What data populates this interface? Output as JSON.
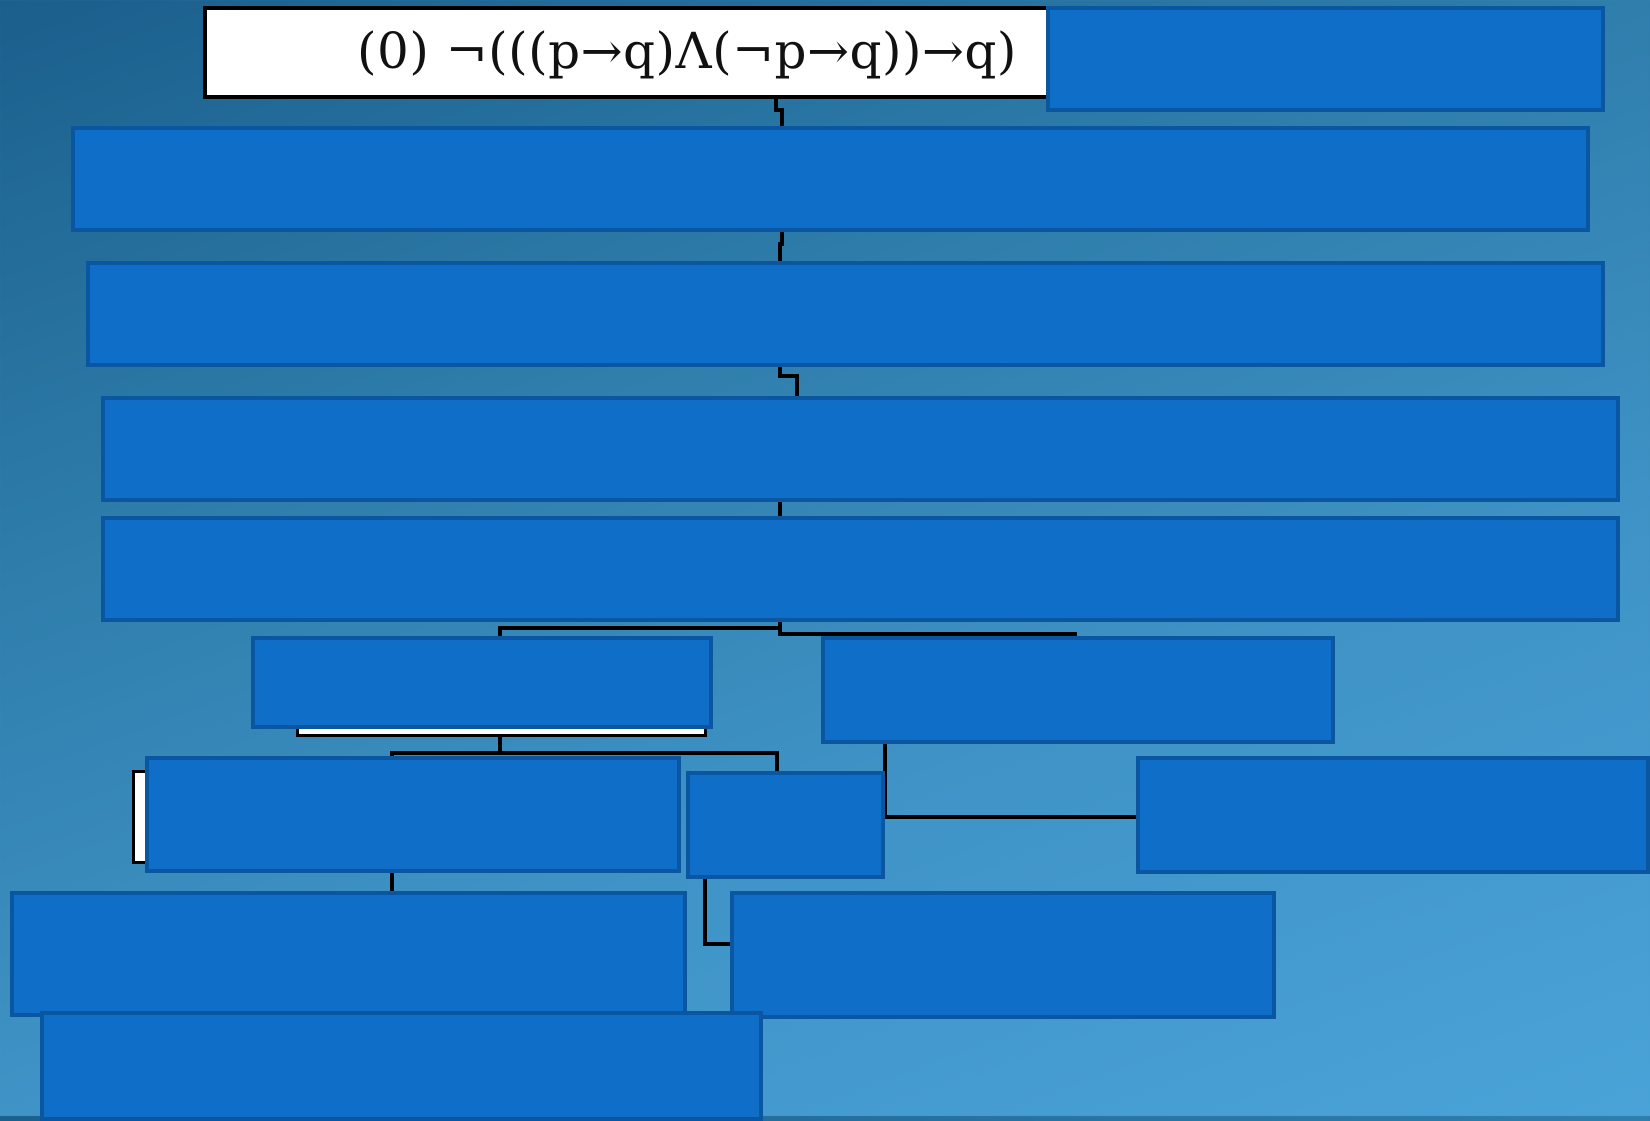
{
  "root": {
    "formula": "(0)  ¬(((p→q)Λ(¬p→q))→q)"
  },
  "colors": {
    "node_fill": "#0f6fc8",
    "node_border": "#0b56a0",
    "connector": "#000000",
    "root_fill": "#ffffff"
  },
  "covered_nodes": 15
}
